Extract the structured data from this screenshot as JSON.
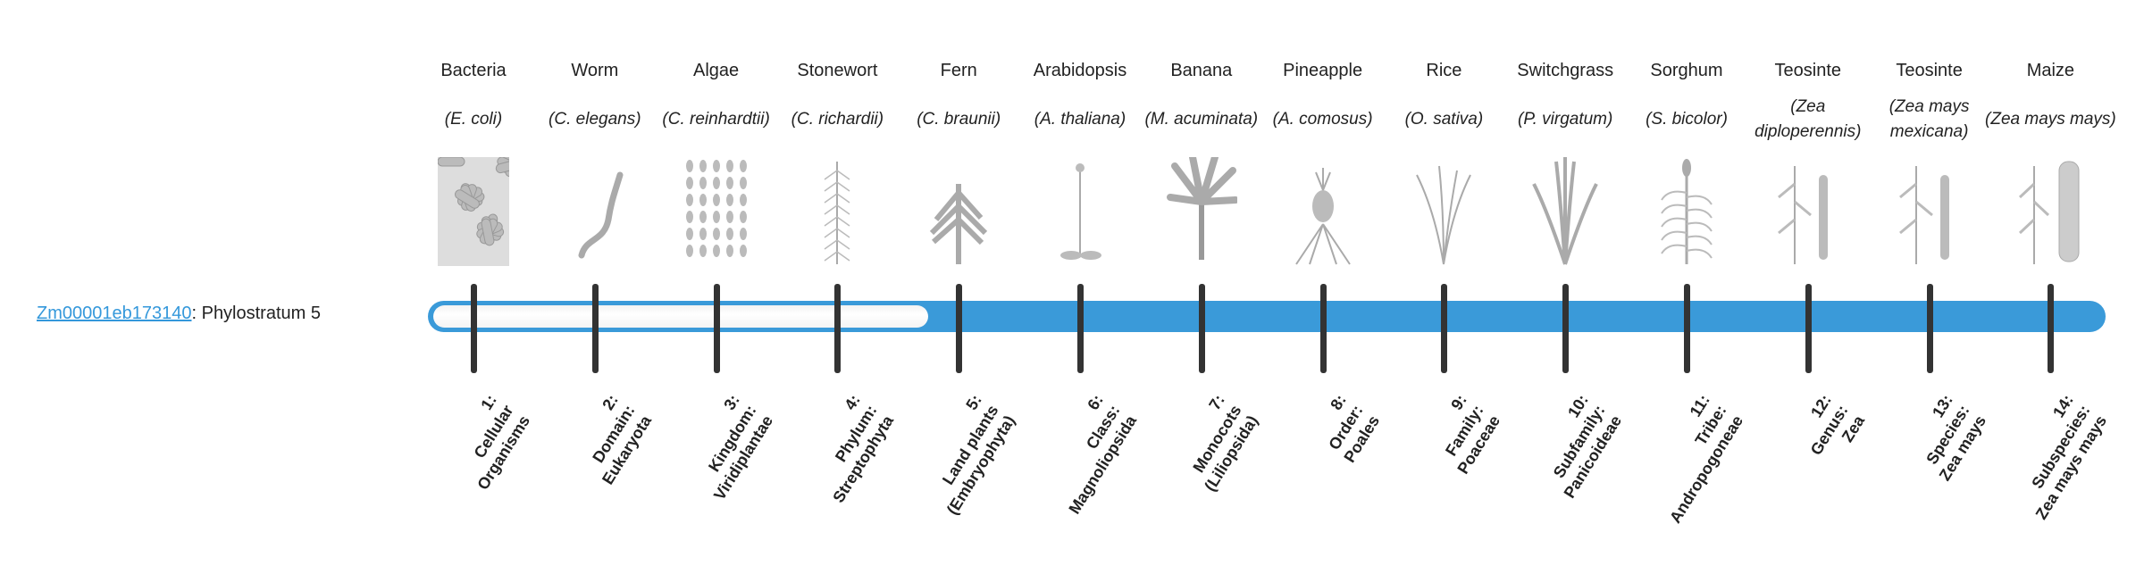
{
  "gene": {
    "id": "Zm00001eb173140",
    "suffix": ": Phylostratum 5",
    "stratum": 5
  },
  "colors": {
    "bar": "#3a9ad9",
    "link": "#3498db",
    "tick": "#333333"
  },
  "organisms": [
    {
      "common": "Bacteria",
      "species": "(E. coli)",
      "icon": "bacteria-icon"
    },
    {
      "common": "Worm",
      "species": "(C. elegans)",
      "icon": "worm-icon"
    },
    {
      "common": "Algae",
      "species": "(C. reinhardtii)",
      "icon": "algae-icon"
    },
    {
      "common": "Stonewort",
      "species": "(C. richardii)",
      "icon": "stonewort-icon"
    },
    {
      "common": "Fern",
      "species": "(C. braunii)",
      "icon": "fern-icon"
    },
    {
      "common": "Arabidopsis",
      "species": "(A. thaliana)",
      "icon": "arabidopsis-icon"
    },
    {
      "common": "Banana",
      "species": "(M. acuminata)",
      "icon": "banana-icon"
    },
    {
      "common": "Pineapple",
      "species": "(A. comosus)",
      "icon": "pineapple-icon"
    },
    {
      "common": "Rice",
      "species": "(O. sativa)",
      "icon": "rice-icon"
    },
    {
      "common": "Switchgrass",
      "species": "(P. virgatum)",
      "icon": "switchgrass-icon"
    },
    {
      "common": "Sorghum",
      "species": "(S. bicolor)",
      "icon": "sorghum-icon"
    },
    {
      "common": "Teosinte",
      "species": "(Zea diploperennis)",
      "icon": "teosinte-icon"
    },
    {
      "common": "Teosinte",
      "species": "(Zea mays mexicana)",
      "icon": "teosinte-icon"
    },
    {
      "common": "Maize",
      "species": "(Zea mays mays)",
      "icon": "maize-icon"
    }
  ],
  "strata": [
    {
      "l1": "1:",
      "l2": "Cellular",
      "l3": "Organisms"
    },
    {
      "l1": "2:",
      "l2": "Domain:",
      "l3": "Eukaryota"
    },
    {
      "l1": "3:",
      "l2": "Kingdom:",
      "l3": "Viridiplantae"
    },
    {
      "l1": "4:",
      "l2": "Phylum:",
      "l3": "Streptophyta"
    },
    {
      "l1": "5:",
      "l2": "Land plants",
      "l3": "(Embryophyta)"
    },
    {
      "l1": "6:",
      "l2": "Class:",
      "l3": "Magnoliopsida"
    },
    {
      "l1": "7:",
      "l2": "Monocots",
      "l3": "(Liliopsida)"
    },
    {
      "l1": "8:",
      "l2": "Order:",
      "l3": "Poales"
    },
    {
      "l1": "9:",
      "l2": "Family:",
      "l3": "Poaceae"
    },
    {
      "l1": "10:",
      "l2": "Subfamily:",
      "l3": "Panicoideae"
    },
    {
      "l1": "11:",
      "l2": "Tribe:",
      "l3": "Andropogoneae"
    },
    {
      "l1": "12:",
      "l2": "Genus:",
      "l3": "Zea"
    },
    {
      "l1": "13:",
      "l2": "Species:",
      "l3": "Zea mays"
    },
    {
      "l1": "14:",
      "l2": "Subspecies:",
      "l3": "Zea mays mays"
    }
  ]
}
